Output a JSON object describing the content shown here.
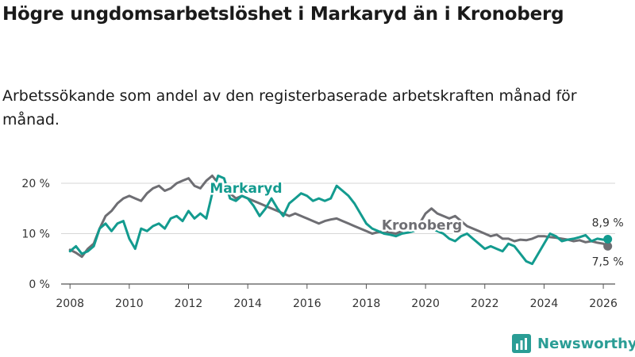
{
  "title": "Högre ungdomsarbetslöshet i Markaryd än i Kronoberg",
  "subtitle": "Arbetssökande som andel av den registerbaserade arbetskraften månad för månad.",
  "brand": {
    "name": "Newsworthy",
    "icon": "bar-chart-logo-icon"
  },
  "chart_data": {
    "type": "line",
    "title": "Högre ungdomsarbetslöshet i Markaryd än i Kronoberg",
    "xlabel": "",
    "ylabel": "",
    "ylim": [
      0,
      20
    ],
    "xlim": [
      2007.7,
      2026.4
    ],
    "grid": true,
    "yticks": [
      {
        "value": 0,
        "label": "0 %"
      },
      {
        "value": 10,
        "label": "10 %"
      },
      {
        "value": 20,
        "label": "20 %"
      }
    ],
    "xticks": [
      {
        "value": 2008,
        "label": "2008"
      },
      {
        "value": 2010,
        "label": "2010"
      },
      {
        "value": 2012,
        "label": "2012"
      },
      {
        "value": 2014,
        "label": "2014"
      },
      {
        "value": 2016,
        "label": "2016"
      },
      {
        "value": 2018,
        "label": "2018"
      },
      {
        "value": 2020,
        "label": "2020"
      },
      {
        "value": 2022,
        "label": "2022"
      },
      {
        "value": 2024,
        "label": "2024"
      },
      {
        "value": 2026,
        "label": "2026"
      }
    ],
    "series": [
      {
        "name": "Kronoberg",
        "color": "#6e6e73",
        "end_label": "7,5 %",
        "x": [
          2008.0,
          2008.2,
          2008.4,
          2008.6,
          2008.8,
          2009.0,
          2009.2,
          2009.4,
          2009.6,
          2009.8,
          2010.0,
          2010.2,
          2010.4,
          2010.6,
          2010.8,
          2011.0,
          2011.2,
          2011.4,
          2011.6,
          2011.8,
          2012.0,
          2012.2,
          2012.4,
          2012.6,
          2012.8,
          2013.0,
          2013.2,
          2013.4,
          2013.6,
          2013.8,
          2014.0,
          2014.2,
          2014.4,
          2014.6,
          2014.8,
          2015.0,
          2015.2,
          2015.4,
          2015.6,
          2015.8,
          2016.0,
          2016.2,
          2016.4,
          2016.6,
          2016.8,
          2017.0,
          2017.2,
          2017.4,
          2017.6,
          2017.8,
          2018.0,
          2018.2,
          2018.4,
          2018.6,
          2018.8,
          2019.0,
          2019.2,
          2019.4,
          2019.6,
          2019.8,
          2020.0,
          2020.2,
          2020.4,
          2020.6,
          2020.8,
          2021.0,
          2021.2,
          2021.4,
          2021.6,
          2021.8,
          2022.0,
          2022.2,
          2022.4,
          2022.6,
          2022.8,
          2023.0,
          2023.2,
          2023.4,
          2023.6,
          2023.8,
          2024.0,
          2024.2,
          2024.4,
          2024.6,
          2024.8,
          2025.0,
          2025.2,
          2025.4,
          2025.6,
          2025.8,
          2026.0,
          2026.15
        ],
        "values": [
          6.8,
          6.2,
          5.4,
          7.0,
          8.0,
          11.0,
          13.5,
          14.5,
          16.0,
          17.0,
          17.5,
          17.0,
          16.5,
          18.0,
          19.0,
          19.5,
          18.5,
          19.0,
          20.0,
          20.5,
          21.0,
          19.5,
          19.0,
          20.5,
          21.5,
          20.0,
          19.0,
          18.0,
          17.0,
          17.5,
          17.0,
          16.5,
          16.0,
          15.5,
          15.0,
          14.5,
          14.0,
          13.5,
          14.0,
          13.5,
          13.0,
          12.5,
          12.0,
          12.5,
          12.8,
          13.0,
          12.5,
          12.0,
          11.5,
          11.0,
          10.5,
          10.0,
          10.3,
          10.5,
          10.2,
          10.0,
          10.5,
          11.0,
          11.5,
          12.0,
          14.0,
          15.0,
          14.0,
          13.5,
          13.0,
          13.5,
          12.5,
          11.5,
          11.0,
          10.5,
          10.0,
          9.5,
          9.8,
          9.0,
          9.0,
          8.5,
          8.8,
          8.7,
          9.0,
          9.5,
          9.5,
          9.3,
          9.2,
          9.0,
          8.8,
          8.5,
          8.7,
          8.3,
          8.5,
          8.2,
          8.0,
          7.5
        ]
      },
      {
        "name": "Markaryd",
        "color": "#139b8f",
        "end_label": "8,9 %",
        "x": [
          2008.0,
          2008.2,
          2008.4,
          2008.6,
          2008.8,
          2009.0,
          2009.2,
          2009.4,
          2009.6,
          2009.8,
          2010.0,
          2010.2,
          2010.4,
          2010.6,
          2010.8,
          2011.0,
          2011.2,
          2011.4,
          2011.6,
          2011.8,
          2012.0,
          2012.2,
          2012.4,
          2012.6,
          2012.8,
          2013.0,
          2013.2,
          2013.4,
          2013.6,
          2013.8,
          2014.0,
          2014.2,
          2014.4,
          2014.6,
          2014.8,
          2015.0,
          2015.2,
          2015.4,
          2015.6,
          2015.8,
          2016.0,
          2016.2,
          2016.4,
          2016.6,
          2016.8,
          2017.0,
          2017.2,
          2017.4,
          2017.6,
          2017.8,
          2018.0,
          2018.2,
          2018.4,
          2018.6,
          2018.8,
          2019.0,
          2019.2,
          2019.4,
          2019.6,
          2019.8,
          2020.0,
          2020.2,
          2020.4,
          2020.6,
          2020.8,
          2021.0,
          2021.2,
          2021.4,
          2021.6,
          2021.8,
          2022.0,
          2022.2,
          2022.4,
          2022.6,
          2022.8,
          2023.0,
          2023.2,
          2023.4,
          2023.6,
          2023.8,
          2024.0,
          2024.2,
          2024.4,
          2024.6,
          2024.8,
          2025.0,
          2025.2,
          2025.4,
          2025.6,
          2025.8,
          2026.0,
          2026.15
        ],
        "values": [
          6.5,
          7.5,
          6.0,
          6.5,
          7.5,
          11.0,
          12.0,
          10.5,
          12.0,
          12.5,
          9.0,
          7.0,
          11.0,
          10.5,
          11.5,
          12.0,
          11.0,
          13.0,
          13.5,
          12.5,
          14.5,
          13.0,
          14.0,
          13.0,
          18.0,
          21.5,
          21.0,
          17.0,
          16.5,
          17.5,
          17.0,
          15.5,
          13.5,
          15.0,
          17.0,
          15.0,
          13.5,
          16.0,
          17.0,
          18.0,
          17.5,
          16.5,
          17.0,
          16.5,
          17.0,
          19.5,
          18.5,
          17.5,
          16.0,
          14.0,
          12.0,
          11.0,
          10.5,
          10.0,
          9.8,
          9.5,
          10.0,
          10.2,
          10.5,
          11.0,
          11.5,
          11.0,
          10.5,
          10.0,
          9.0,
          8.5,
          9.5,
          10.0,
          9.0,
          8.0,
          7.0,
          7.5,
          7.0,
          6.5,
          8.0,
          7.5,
          6.0,
          4.5,
          4.0,
          6.0,
          8.0,
          10.0,
          9.5,
          8.5,
          8.8,
          9.0,
          9.3,
          9.7,
          8.5,
          9.0,
          8.8,
          8.9
        ]
      }
    ]
  }
}
